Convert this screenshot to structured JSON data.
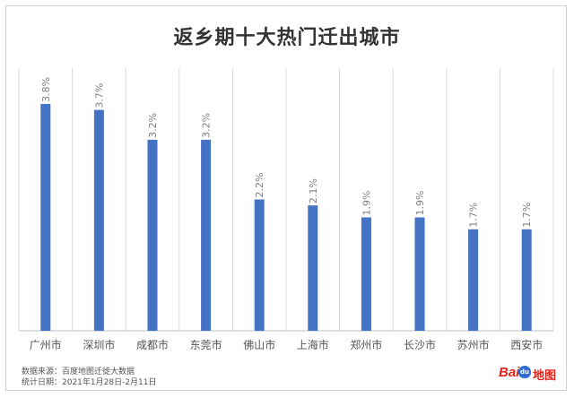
{
  "chart_data": {
    "type": "bar",
    "title": "返乡期十大热门迁出城市",
    "categories": [
      "广州市",
      "深圳市",
      "成都市",
      "东莞市",
      "佛山市",
      "上海市",
      "郑州市",
      "长沙市",
      "苏州市",
      "西安市"
    ],
    "values": [
      3.8,
      3.7,
      3.2,
      3.2,
      2.2,
      2.1,
      1.9,
      1.9,
      1.7,
      1.7
    ],
    "value_labels": [
      "3.8%",
      "3.7%",
      "3.2%",
      "3.2%",
      "2.2%",
      "2.1%",
      "1.9%",
      "1.9%",
      "1.7%",
      "1.7%"
    ],
    "ylim": [
      0,
      4.4
    ],
    "grid": "vertical separators",
    "bar_color": "#4472C4"
  },
  "footer": {
    "source": "数据来源：百度地图迁徙大数据",
    "period": "统计日期：2021年1月28日-2月11日"
  },
  "logo": {
    "bai": "Bai",
    "paw": "du",
    "map": "地图"
  }
}
